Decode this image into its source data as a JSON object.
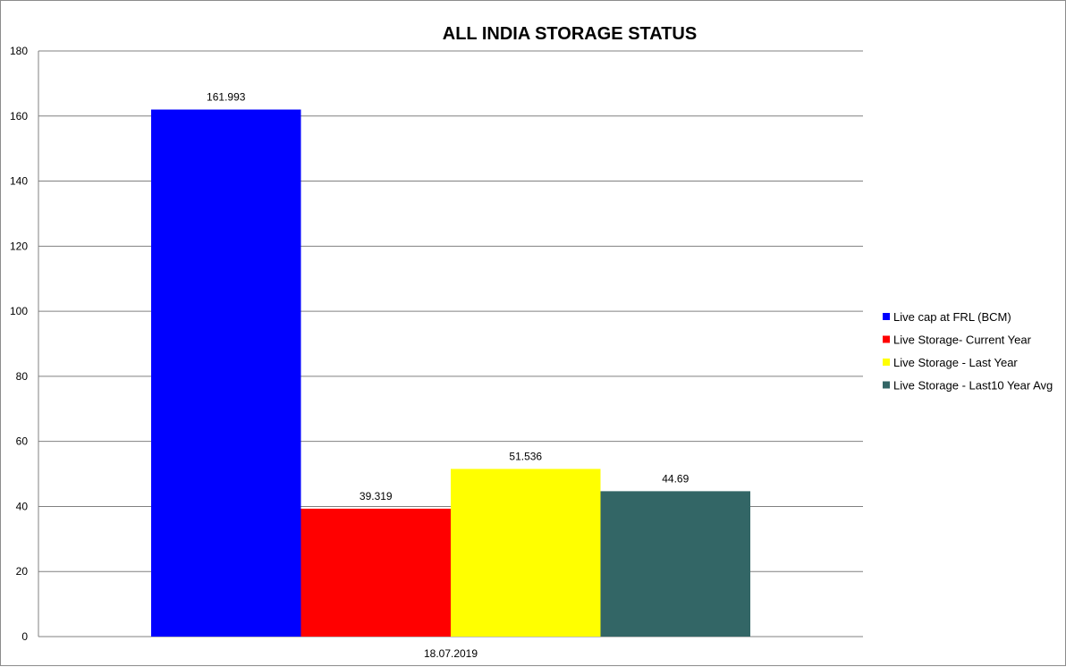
{
  "chart_data": {
    "type": "bar",
    "title": "ALL INDIA STORAGE STATUS",
    "xlabel": "",
    "ylabel": "",
    "categories": [
      "18.07.2019"
    ],
    "series": [
      {
        "name": "Live cap at FRL (BCM)",
        "values": [
          161.993
        ],
        "color": "#0000ff",
        "label": "161.993"
      },
      {
        "name": "Live Storage- Current Year",
        "values": [
          39.319
        ],
        "color": "#ff0000",
        "label": "39.319"
      },
      {
        "name": "Live Storage - Last Year",
        "values": [
          51.536
        ],
        "color": "#ffff00",
        "label": "51.536"
      },
      {
        "name": "Live Storage - Last10  Year Avg",
        "values": [
          44.69
        ],
        "color": "#336666",
        "label": "44.69"
      }
    ],
    "ylim": [
      0,
      180
    ],
    "yticks": [
      0,
      20,
      40,
      60,
      80,
      100,
      120,
      140,
      160,
      180
    ],
    "grid": true,
    "legend_position": "right"
  }
}
